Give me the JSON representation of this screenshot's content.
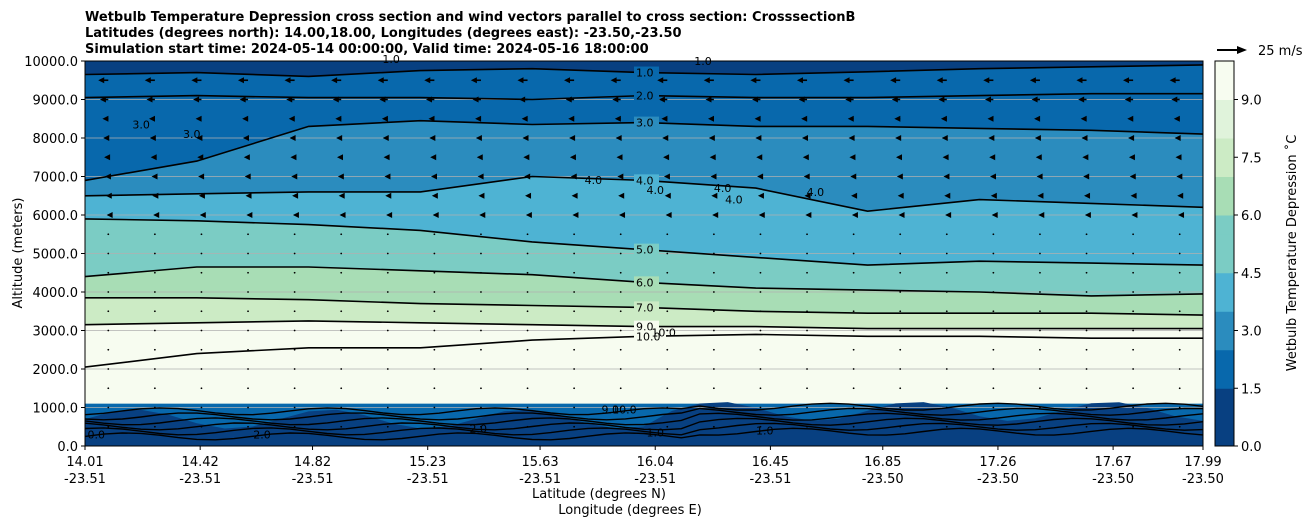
{
  "chart_data": {
    "type": "contour",
    "title_lines": [
      "Wetbulb Temperature Depression cross section and wind vectors parallel to cross section: CrosssectionB",
      "Latitudes (degrees north): 14.00,18.00, Longitudes (degrees east): -23.50,-23.50",
      "Simulation start time: 2024-05-14 00:00:00, Valid time: 2024-05-16 18:00:00"
    ],
    "ylabel": "Altitude (meters)",
    "xlabel_lat": "Latitude (degrees N)",
    "xlabel_lon": "Longitude (degrees E)",
    "ylim": [
      0,
      10000
    ],
    "y_ticks": [
      0,
      1000,
      2000,
      3000,
      4000,
      5000,
      6000,
      7000,
      8000,
      9000,
      10000
    ],
    "y_tick_labels": [
      "0.0",
      "1000.0",
      "2000.0",
      "3000.0",
      "4000.0",
      "5000.0",
      "6000.0",
      "7000.0",
      "8000.0",
      "9000.0",
      "10000.0"
    ],
    "x_range": [
      14.01,
      17.99
    ],
    "x_ticks": [
      {
        "lat": "14.01",
        "lon": "-23.51"
      },
      {
        "lat": "14.42",
        "lon": "-23.51"
      },
      {
        "lat": "14.82",
        "lon": "-23.51"
      },
      {
        "lat": "15.23",
        "lon": "-23.51"
      },
      {
        "lat": "15.63",
        "lon": "-23.51"
      },
      {
        "lat": "16.04",
        "lon": "-23.51"
      },
      {
        "lat": "16.45",
        "lon": "-23.51"
      },
      {
        "lat": "16.85",
        "lon": "-23.50"
      },
      {
        "lat": "17.26",
        "lon": "-23.50"
      },
      {
        "lat": "17.67",
        "lon": "-23.50"
      },
      {
        "lat": "17.99",
        "lon": "-23.50"
      }
    ],
    "colorbar": {
      "label": "Wetbulb Temperature Depression ˚C",
      "range": [
        0,
        10
      ],
      "ticks": [
        "0.0",
        "1.5",
        "3.0",
        "4.5",
        "6.0",
        "7.5",
        "9.0"
      ],
      "tick_values": [
        0,
        1.5,
        3,
        4.5,
        6,
        7.5,
        9
      ],
      "colors": [
        "#084081",
        "#0868ac",
        "#2b8cbe",
        "#4eb3d3",
        "#7bccc4",
        "#a8ddb5",
        "#ccebc5",
        "#e0f3db",
        "#f7fcf0"
      ]
    },
    "quiver_key": {
      "label": "25 m/s",
      "speed": 25
    },
    "contour_lines": [
      {
        "label": "1.0",
        "level": 1.0,
        "altitude": [
          9650,
          9700,
          9600,
          9750,
          9800,
          9700,
          9650,
          9720,
          9800,
          9850,
          9900
        ]
      },
      {
        "label": "2.0",
        "level": 2.0,
        "altitude": [
          9050,
          9100,
          9050,
          9050,
          9000,
          9100,
          9050,
          9050,
          9100,
          9150,
          9150
        ]
      },
      {
        "label": "3.0",
        "level": 3.0,
        "altitude": [
          6900,
          7400,
          8300,
          8450,
          8350,
          8400,
          8300,
          8300,
          8250,
          8200,
          8100
        ]
      },
      {
        "label": "4.0",
        "level": 4.0,
        "altitude": [
          6500,
          6550,
          6600,
          6600,
          7000,
          6900,
          6700,
          6100,
          6400,
          6300,
          6200
        ]
      },
      {
        "label": "5.0",
        "level": 5.0,
        "altitude": [
          5900,
          5850,
          5750,
          5600,
          5300,
          5100,
          4900,
          4700,
          4800,
          4750,
          4700
        ]
      },
      {
        "label": "6.0",
        "level": 6.0,
        "altitude": [
          4400,
          4650,
          4650,
          4550,
          4450,
          4250,
          4100,
          4050,
          4000,
          3900,
          3950
        ]
      },
      {
        "label": "7.0",
        "level": 7.0,
        "altitude": [
          3850,
          3850,
          3800,
          3700,
          3650,
          3600,
          3500,
          3450,
          3450,
          3450,
          3400
        ]
      },
      {
        "label": "9.0",
        "level": 9.0,
        "altitude": [
          3150,
          3200,
          3250,
          3200,
          3150,
          3100,
          3100,
          3050,
          3050,
          3050,
          3050
        ]
      },
      {
        "label": "10.0",
        "level": 10.0,
        "altitude": [
          2050,
          2400,
          2550,
          2550,
          2750,
          2850,
          2900,
          2850,
          2850,
          2800,
          2800
        ]
      }
    ],
    "extra_contour_labels": [
      {
        "label": "1.0",
        "lat": 15.1,
        "altitude": 9950
      },
      {
        "label": "1.0",
        "lat": 16.21,
        "altitude": 9900
      },
      {
        "label": "3.0",
        "lat": 14.21,
        "altitude": 8250
      },
      {
        "label": "3.0",
        "lat": 14.39,
        "altitude": 8000
      },
      {
        "label": "4.0",
        "lat": 15.82,
        "altitude": 6800
      },
      {
        "label": "4.0",
        "lat": 16.04,
        "altitude": 6550
      },
      {
        "label": "4.0",
        "lat": 16.28,
        "altitude": 6600
      },
      {
        "label": "4.0",
        "lat": 16.32,
        "altitude": 6300
      },
      {
        "label": "4.0",
        "lat": 16.61,
        "altitude": 6500
      },
      {
        "label": "10.0",
        "lat": 16.07,
        "altitude": 2850
      },
      {
        "label": "10.0",
        "lat": 15.93,
        "altitude": 850
      },
      {
        "label": "9.0",
        "lat": 15.88,
        "altitude": 850
      },
      {
        "label": "2.0",
        "lat": 15.41,
        "altitude": 350
      },
      {
        "label": "1.0",
        "lat": 16.04,
        "altitude": 250
      },
      {
        "label": "1.0",
        "lat": 16.43,
        "altitude": 300
      },
      {
        "label": "2.0",
        "lat": 14.64,
        "altitude": 200
      },
      {
        "label": "0.0",
        "lat": 14.05,
        "altitude": 200
      }
    ],
    "wind_rows": [
      {
        "altitude": 9500,
        "u": -12
      },
      {
        "altitude": 9000,
        "u": -10
      },
      {
        "altitude": 8500,
        "u": -7
      },
      {
        "altitude": 8000,
        "u": -6
      },
      {
        "altitude": 7500,
        "u": -5
      },
      {
        "altitude": 7000,
        "u": -4
      },
      {
        "altitude": 6500,
        "u": -3
      },
      {
        "altitude": 6000,
        "u": -2
      },
      {
        "altitude": 5500,
        "u": -1.5
      },
      {
        "altitude": 5000,
        "u": 0
      },
      {
        "altitude": 4500,
        "u": 0
      },
      {
        "altitude": 4000,
        "u": 1.5
      },
      {
        "altitude": 3500,
        "u": 1.5
      },
      {
        "altitude": 3000,
        "u": 1.5
      },
      {
        "altitude": 2500,
        "u": 0
      },
      {
        "altitude": 2000,
        "u": 0
      },
      {
        "altitude": 1500,
        "u": 0
      },
      {
        "altitude": 1000,
        "u": 0
      },
      {
        "altitude": 500,
        "u": 0
      }
    ],
    "grid": "y-major"
  }
}
